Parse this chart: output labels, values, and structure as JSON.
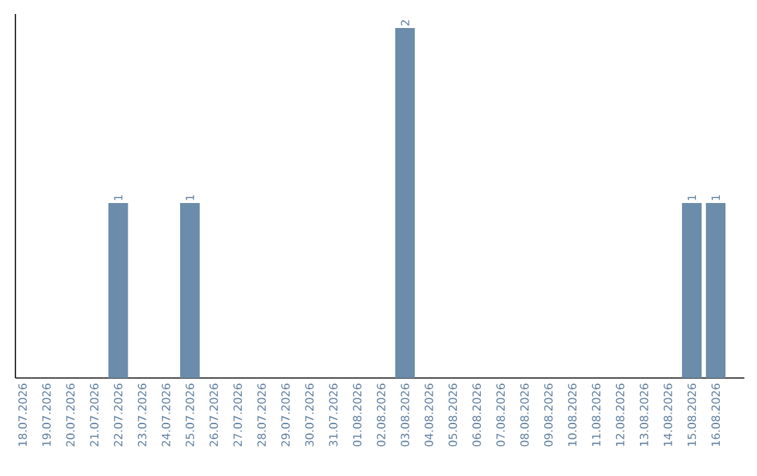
{
  "chart_data": {
    "type": "bar",
    "categories": [
      "18.07.2026",
      "19.07.2026",
      "20.07.2026",
      "21.07.2026",
      "22.07.2026",
      "23.07.2026",
      "24.07.2026",
      "25.07.2026",
      "26.07.2026",
      "27.07.2026",
      "28.07.2026",
      "29.07.2026",
      "30.07.2026",
      "31.07.2026",
      "01.08.2026",
      "02.08.2026",
      "03.08.2026",
      "04.08.2026",
      "05.08.2026",
      "06.08.2026",
      "07.08.2026",
      "08.08.2026",
      "09.08.2026",
      "10.08.2026",
      "11.08.2026",
      "12.08.2026",
      "13.08.2026",
      "14.08.2026",
      "15.08.2026",
      "16.08.2026"
    ],
    "values": [
      0,
      0,
      0,
      0,
      1,
      0,
      0,
      1,
      0,
      0,
      0,
      0,
      0,
      0,
      0,
      0,
      2,
      0,
      0,
      0,
      0,
      0,
      0,
      0,
      0,
      0,
      0,
      0,
      1,
      1
    ],
    "value_labels": [
      null,
      null,
      null,
      null,
      "1",
      null,
      null,
      "1",
      null,
      null,
      null,
      null,
      null,
      null,
      null,
      null,
      "2",
      null,
      null,
      null,
      null,
      null,
      null,
      null,
      null,
      null,
      null,
      null,
      "1",
      "1"
    ],
    "color": "#6b8caa",
    "ylim": [
      0,
      2.08
    ],
    "tick_labels": "x"
  }
}
